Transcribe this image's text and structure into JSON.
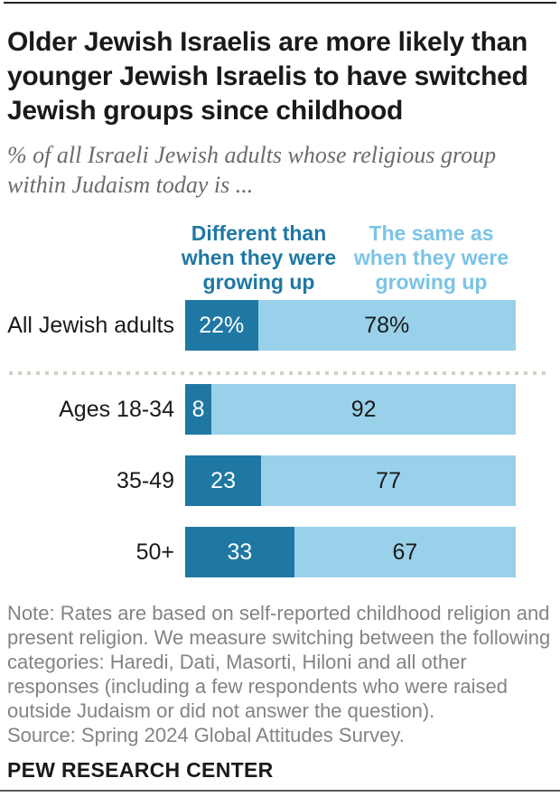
{
  "header": {
    "title": "Older Jewish Israelis are more likely than younger Jewish Israelis to have switched Jewish groups since childhood",
    "subtitle": "% of all Israeli Jewish adults whose religious group within Judaism today is ..."
  },
  "colors": {
    "dark_blue": "#1f78a3",
    "light_blue": "#99d1ea",
    "legend_light_text": "#7cc3e6",
    "dotted_divider": "#d5cfc0"
  },
  "chart_data": {
    "type": "bar",
    "orientation": "horizontal",
    "stacked": true,
    "unit": "%",
    "xlim": [
      0,
      100
    ],
    "categories": [
      "All Jewish adults",
      "Ages 18-34",
      "35-49",
      "50+"
    ],
    "series": [
      {
        "name": "Different than when they were growing up",
        "color": "#1f78a3",
        "values": [
          22,
          8,
          23,
          33
        ]
      },
      {
        "name": "The same as when they were growing up",
        "color": "#99d1ea",
        "values": [
          78,
          92,
          77,
          67
        ]
      }
    ],
    "value_labels": [
      [
        "22%",
        "78%"
      ],
      [
        "8",
        "92"
      ],
      [
        "23",
        "77"
      ],
      [
        "33",
        "67"
      ]
    ],
    "divider_after_row": 0
  },
  "footer": {
    "note": "Note: Rates are based on self-reported childhood religion and present religion. We measure switching between the following categories: Haredi, Dati, Masorti, Hiloni and all other responses (including a few respondents who were raised outside Judaism or did not answer the question).",
    "source": "Source: Spring 2024 Global Attitudes Survey.",
    "brand": "PEW RESEARCH CENTER"
  }
}
